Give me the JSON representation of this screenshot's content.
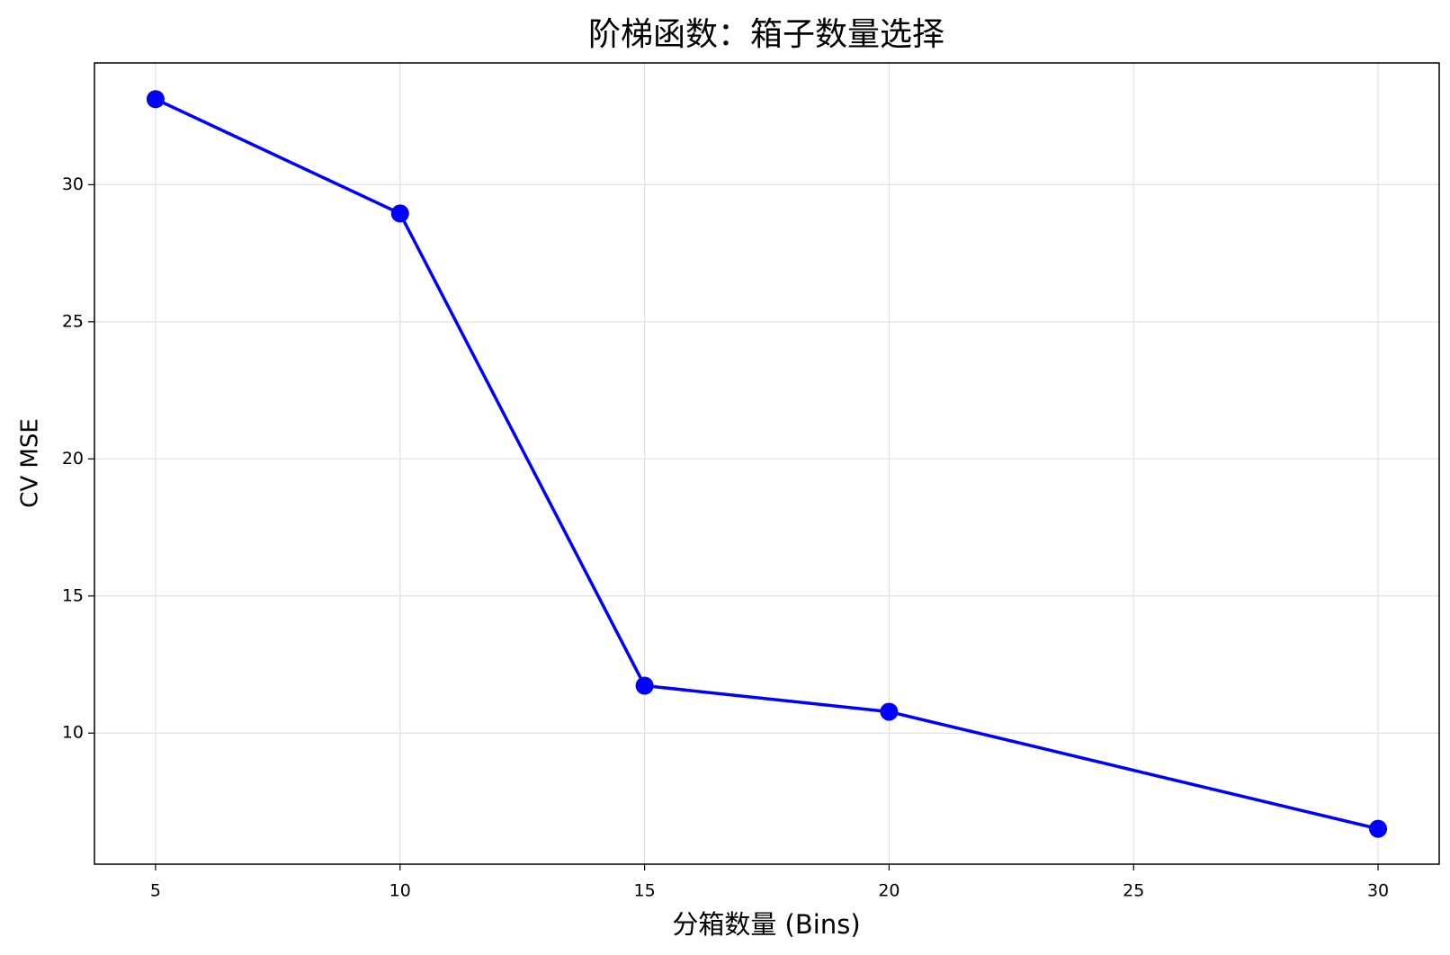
{
  "chart_data": {
    "type": "line",
    "title": "阶梯函数：箱子数量选择",
    "x_label": "分箱数量 (Bins)",
    "y_label": "CV MSE",
    "x": [
      5,
      10,
      15,
      20,
      30
    ],
    "series": [
      {
        "name": "CV MSE",
        "color": "#0000ff",
        "values": [
          33.12,
          28.95,
          11.73,
          10.78,
          6.51
        ]
      }
    ],
    "xlim": [
      3.75,
      31.25
    ],
    "xticks": [
      5,
      10,
      15,
      20,
      25,
      30
    ],
    "ylim": [
      5.22,
      34.44
    ],
    "yticks": [
      10,
      15,
      20,
      25,
      30
    ],
    "grid": true
  }
}
